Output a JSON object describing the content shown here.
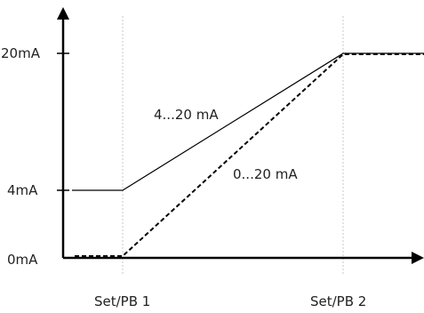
{
  "y_axis": {
    "ticks": [
      {
        "label": "20mA",
        "value": 20
      },
      {
        "label": "4mA",
        "value": 4
      },
      {
        "label": "0mA",
        "value": 0
      }
    ]
  },
  "x_axis": {
    "ticks": [
      {
        "label": "Set/PB 1"
      },
      {
        "label": "Set/PB 2"
      }
    ]
  },
  "curves": [
    {
      "label": "4...20 mA",
      "style": "solid",
      "start_mA": 4,
      "end_mA": 20
    },
    {
      "label": "0...20 mA",
      "style": "dashed",
      "start_mA": 0,
      "end_mA": 20
    }
  ],
  "colors": {
    "line": "#000000",
    "guide": "#c8c8c8",
    "text": "#222222"
  }
}
